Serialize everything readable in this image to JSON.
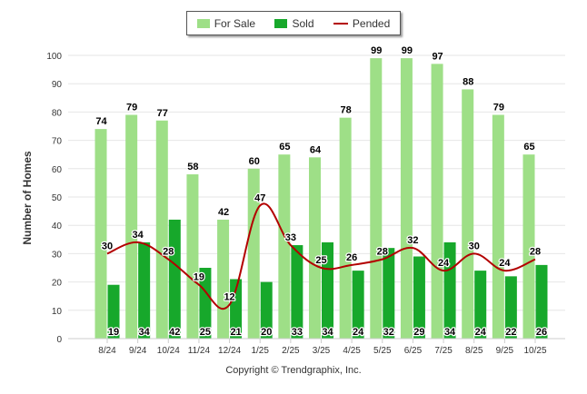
{
  "chart_data": {
    "type": "bar",
    "ylabel": "Number of Homes",
    "xlabel": "",
    "ylim": [
      0,
      100
    ],
    "yticks": [
      0,
      10,
      20,
      30,
      40,
      50,
      60,
      70,
      80,
      90,
      100
    ],
    "categories": [
      "8/24",
      "9/24",
      "10/24",
      "11/24",
      "12/24",
      "1/25",
      "2/25",
      "3/25",
      "4/25",
      "5/25",
      "6/25",
      "7/25",
      "8/25",
      "9/25",
      "10/25"
    ],
    "series": [
      {
        "name": "For Sale",
        "type": "bar",
        "color": "#9edf87",
        "values": [
          74,
          79,
          77,
          58,
          42,
          60,
          65,
          64,
          78,
          99,
          99,
          97,
          88,
          79,
          65
        ]
      },
      {
        "name": "Sold",
        "type": "bar",
        "color": "#17a82b",
        "values": [
          19,
          34,
          42,
          25,
          21,
          20,
          33,
          34,
          24,
          32,
          29,
          34,
          24,
          22,
          26
        ]
      },
      {
        "name": "Pended",
        "type": "line",
        "color": "#b30000",
        "values": [
          30,
          34,
          28,
          19,
          12,
          47,
          33,
          25,
          26,
          28,
          32,
          24,
          30,
          24,
          28
        ]
      }
    ],
    "legend": "top-center",
    "grid": true,
    "copyright": "Copyright © Trendgraphix, Inc."
  }
}
